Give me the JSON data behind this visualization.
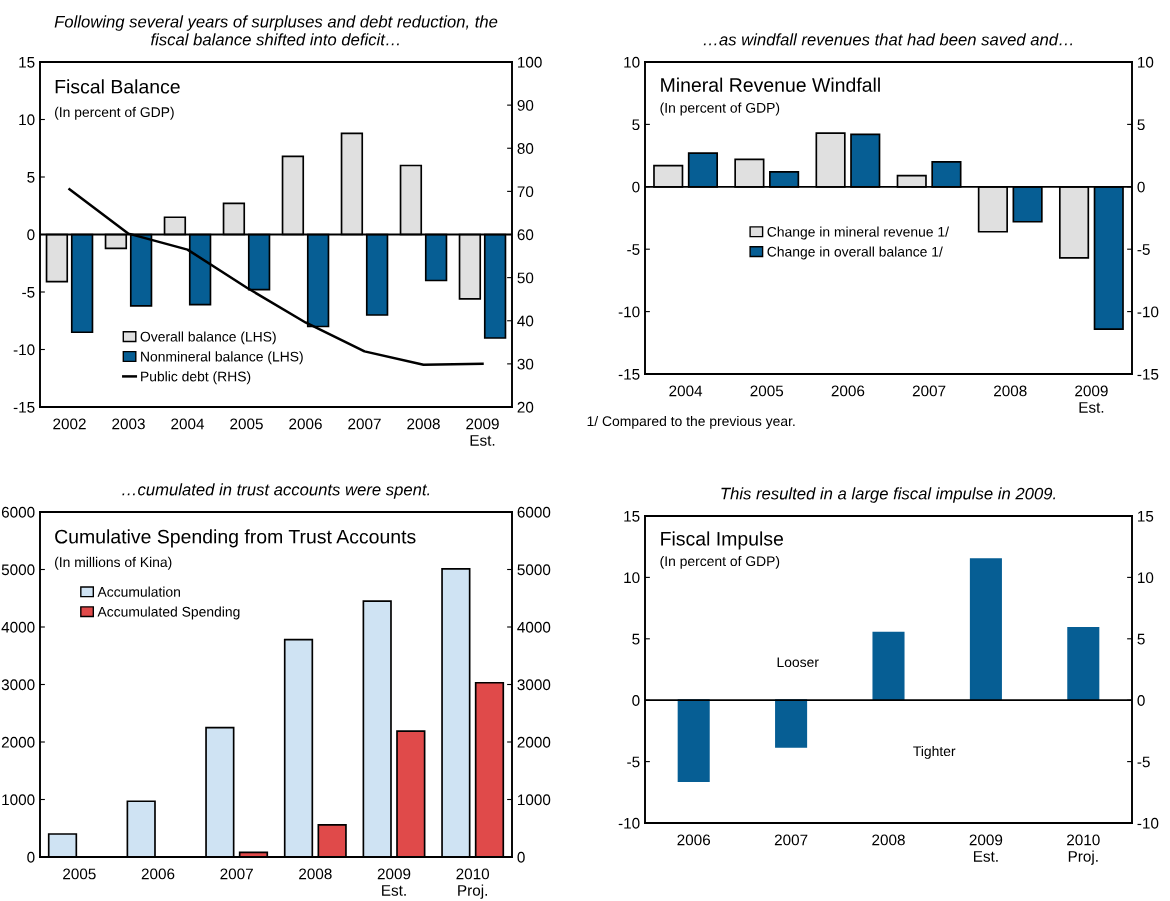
{
  "chart_data": [
    {
      "type": "bar",
      "title": "Following several years of surpluses and debt reduction, the\nfiscal balance shifted into deficit…",
      "subtitle": "Fiscal Balance",
      "annotations": [
        "(In percent of GDP)"
      ],
      "categories": [
        "2002",
        "2003",
        "2004",
        "2005",
        "2006",
        "2007",
        "2008",
        "2009\nEst."
      ],
      "series": [
        {
          "name": "Overall balance (LHS)",
          "color": "#e0e0e0",
          "values": [
            -4.1,
            -1.2,
            1.5,
            2.7,
            6.8,
            8.8,
            6.0,
            -5.6
          ]
        },
        {
          "name": "Nonmineral balance (LHS)",
          "color": "#065e94",
          "values": [
            -8.5,
            -6.2,
            -6.1,
            -4.8,
            -8.0,
            -7.0,
            -4.0,
            -9.0
          ]
        },
        {
          "name": "Public debt (RHS)",
          "type": "line",
          "axis": "y2",
          "color": "#000000",
          "values": [
            70.5,
            60.2,
            56.5,
            47.7,
            39.6,
            32.9,
            29.8,
            30.0
          ]
        }
      ],
      "ref_lines": [
        {
          "axis": "y",
          "value": 0,
          "color": "#000000"
        }
      ],
      "ylim": [
        -15,
        15
      ],
      "yticks": [
        -15,
        -10,
        -5,
        0,
        5,
        10,
        15
      ],
      "y2lim": [
        20,
        100
      ],
      "y2ticks": [
        20,
        30,
        40,
        50,
        60,
        70,
        80,
        90,
        100
      ],
      "legend": "bottom left",
      "grid": false
    },
    {
      "type": "bar",
      "title": "…as windfall revenues that had been saved and…",
      "subtitle": "Mineral Revenue Windfall",
      "annotations": [
        "(In percent of GDP)",
        "1/ Compared to the previous year."
      ],
      "categories": [
        "2004",
        "2005",
        "2006",
        "2007",
        "2008",
        "2009\nEst."
      ],
      "series": [
        {
          "name": "Change in mineral revenue 1/",
          "color": "#e0e0e0",
          "values": [
            1.7,
            2.2,
            4.3,
            0.9,
            -3.6,
            -5.7
          ]
        },
        {
          "name": "Change in overall balance 1/",
          "color": "#065e94",
          "values": [
            2.7,
            1.2,
            4.2,
            2.0,
            -2.8,
            -11.4
          ]
        }
      ],
      "ref_lines": [
        {
          "axis": "y",
          "value": 0,
          "color": "#000000"
        }
      ],
      "ylim": [
        -15,
        10
      ],
      "yticks": [
        -15,
        -10,
        -5,
        0,
        5,
        10
      ],
      "y2lim": [
        -15,
        10
      ],
      "y2ticks": [
        -15,
        -10,
        -5,
        0,
        5,
        10
      ],
      "legend": "center",
      "grid": false
    },
    {
      "type": "bar",
      "title": "…cumulated in trust accounts were spent.",
      "subtitle": "Cumulative Spending from Trust Accounts",
      "annotations": [
        "(In millions of Kina)"
      ],
      "categories": [
        "2005",
        "2006",
        "2007",
        "2008",
        "2009\nEst.",
        "2010\nProj."
      ],
      "series": [
        {
          "name": "Accumulation",
          "color": "#cfe3f3",
          "values": [
            400,
            970,
            2250,
            3780,
            4450,
            5010
          ]
        },
        {
          "name": "Accumulated Spending",
          "color": "#e04a4a",
          "values": [
            null,
            null,
            80,
            560,
            2190,
            3030
          ]
        }
      ],
      "ylim": [
        0,
        6000
      ],
      "yticks": [
        0,
        1000,
        2000,
        3000,
        4000,
        5000,
        6000
      ],
      "y2lim": [
        0,
        6000
      ],
      "y2ticks": [
        0,
        1000,
        2000,
        3000,
        4000,
        5000,
        6000
      ],
      "legend": "top left",
      "grid": false
    },
    {
      "type": "bar",
      "title": "This resulted in a large fiscal impulse in 2009.",
      "subtitle": "Fiscal Impulse",
      "annotations": [
        "(In percent of GDP)",
        "Looser",
        "Tighter"
      ],
      "categories": [
        "2006",
        "2007",
        "2008",
        "2009\nEst.",
        "2010\nProj."
      ],
      "values": [
        -6.6,
        -3.8,
        5.5,
        11.5,
        5.9
      ],
      "color": "#065e94",
      "ref_lines": [
        {
          "axis": "y",
          "value": 0,
          "color": "#000000"
        }
      ],
      "ylim": [
        -10,
        15
      ],
      "yticks": [
        -10,
        -5,
        0,
        5,
        10,
        15
      ],
      "y2lim": [
        -10,
        15
      ],
      "y2ticks": [
        -10,
        -5,
        0,
        5,
        10,
        15
      ],
      "grid": false
    }
  ]
}
